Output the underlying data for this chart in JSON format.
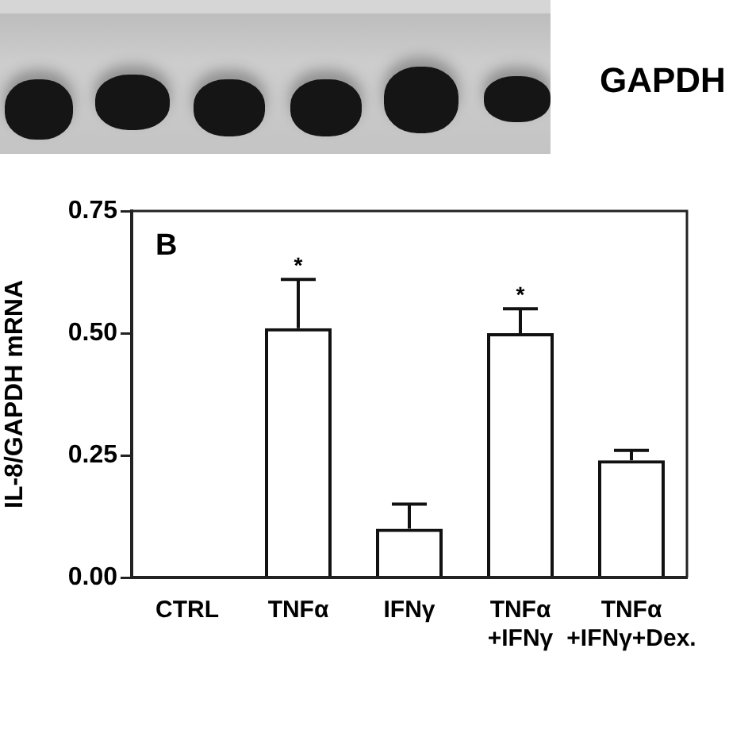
{
  "chart_data": {
    "type": "bar",
    "ylabel": "IL-8/GAPDH mRNA",
    "categories": [
      "CTRL",
      "TNFα",
      "IFNγ",
      "TNFα\n+IFNγ",
      "TNFα\n+IFNγ+Dex."
    ],
    "values": [
      0,
      0.51,
      0.1,
      0.5,
      0.24
    ],
    "errors": [
      null,
      [
        0.51,
        0.61
      ],
      [
        0.1,
        0.15
      ],
      [
        0.5,
        0.55
      ],
      [
        0.24,
        0.26
      ]
    ],
    "color": "#111111",
    "ylim": [
      0,
      0.75
    ],
    "yticks": [
      {
        "value": 0,
        "label": "0.00"
      },
      0.25,
      {
        "value": 0.5,
        "label": "0.50"
      },
      0.75
    ],
    "annotations": [
      "B",
      "GAPDH",
      {
        "text": "*",
        "x": "TNFα",
        "y": 0.61
      },
      {
        "text": "*",
        "x": "TNFα\n+IFNγ",
        "y": 0.55
      }
    ]
  }
}
